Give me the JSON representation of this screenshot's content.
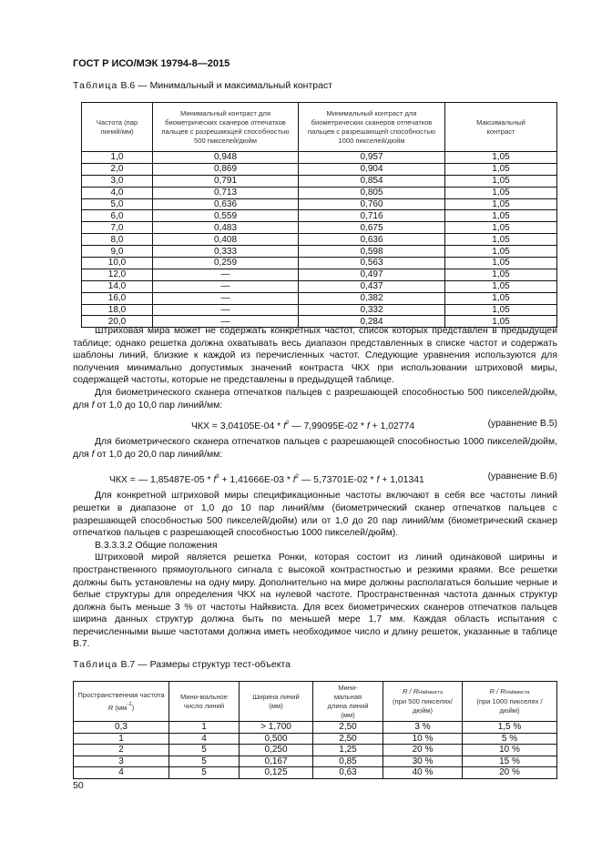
{
  "header": {
    "title": "ГОСТ Р ИСО/МЭК 19794-8—2015"
  },
  "table_b6": {
    "caption_label": "Таблица",
    "caption_text": "В.6 — Минимальный и максимальный контраст",
    "columns": [
      "Частота (пар линий/мм)",
      "Минимальный контраст для биометрических сканеров отпечатков пальцев с разрешающей способностью 500 пикселей/дюйм",
      "Минимальный контраст для биометрических сканеров отпечатков пальцев с разрешающей способностью 1000 пикселей/дюйм",
      "Максимальный контраст"
    ],
    "rows": [
      [
        "1,0",
        "0,948",
        "0,957",
        "1,05"
      ],
      [
        "2,0",
        "0,869",
        "0,904",
        "1,05"
      ],
      [
        "3,0",
        "0,791",
        "0,854",
        "1,05"
      ],
      [
        "4,0",
        "0,713",
        "0,805",
        "1,05"
      ],
      [
        "5,0",
        "0,636",
        "0,760",
        "1,05"
      ],
      [
        "6,0",
        "0,559",
        "0,716",
        "1,05"
      ],
      [
        "7,0",
        "0,483",
        "0,675",
        "1,05"
      ],
      [
        "8,0",
        "0,408",
        "0,636",
        "1,05"
      ],
      [
        "9,0",
        "0,333",
        "0,598",
        "1,05"
      ],
      [
        "10,0",
        "0,259",
        "0,563",
        "1,05"
      ],
      [
        "12,0",
        "—",
        "0,497",
        "1,05"
      ],
      [
        "14,0",
        "—",
        "0,437",
        "1,05"
      ],
      [
        "16,0",
        "—",
        "0,382",
        "1,05"
      ],
      [
        "18,0",
        "—",
        "0,332",
        "1,05"
      ],
      [
        "20,0",
        "—",
        "0,284",
        "1,05"
      ]
    ]
  },
  "body": {
    "p1": "Штриховая мира может не содержать конкретных частот, список которых представлен в предыдущей таблице; однако решетка должна охватывать весь диапазон представленных в списке частот и содержать шаблоны линий, близкие к каждой из перечисленных частот. Следующие уравнения используются для получения минимально допустимых значений контраста ЧКХ при использовании штриховой миры, содержащей частоты, которые не представлены в предыдущей таблице.",
    "p2_a": "Для биометрического сканера отпечатков пальцев с разрешающей способностью 500 пикселей/дюйм, для ",
    "p2_b": " от 1,0 до 10,0 пар линий/мм:",
    "eq5": {
      "a": "ЧКХ = 3,04105E-04 * ",
      "b": " — 7,99095E-02 * ",
      "c": " + 1,02774",
      "label": "(уравнение В.5)"
    },
    "p3_a": "Для биометрического сканера отпечатков пальцев с разрешающей способностью 1000 пикселей/дюйм, для ",
    "p3_b": " от 1,0 до 20,0 пар линий/мм:",
    "eq6": {
      "a": "ЧКХ = — 1,85487E-05 * ",
      "b": " + 1,41666E-03 * ",
      "c": " — 5,73701E-02 * ",
      "d": " + 1,01341",
      "label": "(уравнение В.6)"
    },
    "var_f": "f",
    "p4": "Для конкретной штриховой миры спецификационные частоты включают в себя все частоты линий решетки в диапазоне от 1,0 до 10 пар линий/мм (биометрический сканер отпечатков пальцев с разрешающей способностью 500 пикселей/дюйм) или от 1,0 до 20 пар линий/мм (биометрический сканер отпечатков пальцев с разрешающей способностью 1000 пикселей/дюйм).",
    "section": "В.3.3.3.2 Общие положения",
    "p5": "Штриховой мирой является решетка Ронки, которая состоит из линий одинаковой ширины и пространственного прямоугольного сигнала с высокой контрастностью и резкими краями. Все решетки должны быть установлены на одну миру. Дополнительно на мире должны располагаться большие черные и белые структуры для определения ЧКХ на нулевой частоте. Пространственная частота данных структур должна быть меньше 3 % от частоты Найквиста. Для всех биометрических сканеров отпечатков пальцев ширина данных структур должна быть по меньшей мере 1,7 мм. Каждая область испытания с перечисленными выше частотами должна иметь необходимое число и длину решеток, указанные в таблице В.7."
  },
  "table_b7": {
    "caption_label": "Таблица",
    "caption_text": "В.7 — Размеры структур тест-объекта",
    "columns": {
      "c1": "Пространственная частота",
      "c1_var": "R",
      "c1_unit": "(мм",
      "c1_exp": "-1",
      "c1_close": ")",
      "c2": "Мини-мальное число линий",
      "c3": "Ширина линий (мм)",
      "c4": "Мини-мальная длина линий (мм)",
      "c5_ratio": "R / R",
      "c5_sub": "Найквиста",
      "c5_note": "(при 500 пикселях/дюйм)",
      "c6_ratio": "R / R",
      "c6_sub": "Найквиста",
      "c6_note": "(при 1000 пикселях /дюйм)"
    },
    "rows": [
      [
        "0,3",
        "1",
        "> 1,700",
        "2,50",
        "3 %",
        "1,5 %"
      ],
      [
        "1",
        "4",
        "0,500",
        "2,50",
        "10 %",
        "5 %"
      ],
      [
        "2",
        "5",
        "0,250",
        "1,25",
        "20 %",
        "10 %"
      ],
      [
        "3",
        "5",
        "0,167",
        "0,85",
        "30 %",
        "15 %"
      ],
      [
        "4",
        "5",
        "0,125",
        "0,63",
        "40 %",
        "20 %"
      ]
    ]
  },
  "footer": {
    "page_number": "50"
  }
}
